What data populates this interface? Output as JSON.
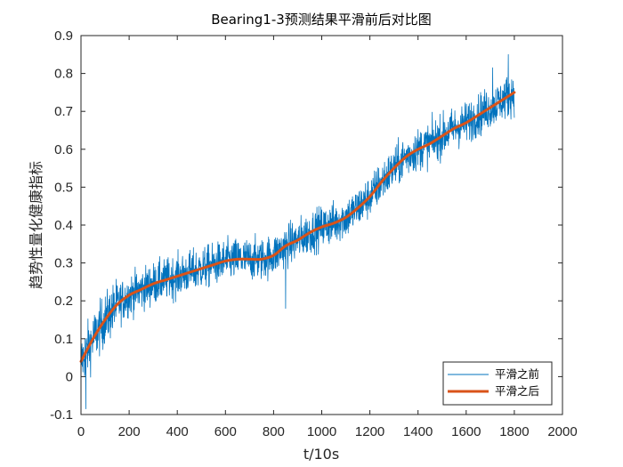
{
  "chart_data": {
    "type": "line",
    "title": "Bearing1-3预测结果平滑前后对比图",
    "xlabel": "t/10s",
    "ylabel": "趋势性量化健康指标",
    "xlim": [
      0,
      2000
    ],
    "ylim": [
      -0.1,
      0.9
    ],
    "xticks": [
      "0",
      "200",
      "400",
      "600",
      "800",
      "1000",
      "1200",
      "1400",
      "1600",
      "1800",
      "2000"
    ],
    "yticks": [
      "-0.1",
      "0",
      "0.1",
      "0.2",
      "0.3",
      "0.4",
      "0.5",
      "0.6",
      "0.7",
      "0.8",
      "0.9"
    ],
    "legend_position": "bottom-right",
    "series": [
      {
        "name": "平滑之前",
        "color": "#0072BD",
        "style": "noisy thin line, roughly 1800 samples fluctuating around the smoothed curve",
        "x_end": 1800,
        "noise_amplitude": 0.045,
        "outliers": [
          [
            20,
            -0.085
          ],
          [
            850,
            0.18
          ],
          [
            1775,
            0.85
          ],
          [
            1710,
            0.815
          ]
        ]
      },
      {
        "name": "平滑之后",
        "color": "#D95319",
        "style": "thick smooth line",
        "x": [
          0,
          50,
          100,
          150,
          200,
          250,
          300,
          350,
          400,
          450,
          500,
          550,
          600,
          650,
          700,
          750,
          800,
          850,
          900,
          950,
          1000,
          1050,
          1100,
          1150,
          1200,
          1250,
          1300,
          1350,
          1400,
          1450,
          1500,
          1550,
          1600,
          1650,
          1700,
          1750,
          1800
        ],
        "y": [
          0.04,
          0.1,
          0.15,
          0.19,
          0.215,
          0.23,
          0.245,
          0.255,
          0.265,
          0.275,
          0.285,
          0.295,
          0.305,
          0.31,
          0.31,
          0.31,
          0.32,
          0.345,
          0.36,
          0.38,
          0.395,
          0.405,
          0.42,
          0.445,
          0.475,
          0.515,
          0.55,
          0.58,
          0.6,
          0.615,
          0.635,
          0.655,
          0.67,
          0.69,
          0.71,
          0.73,
          0.75
        ]
      }
    ]
  }
}
